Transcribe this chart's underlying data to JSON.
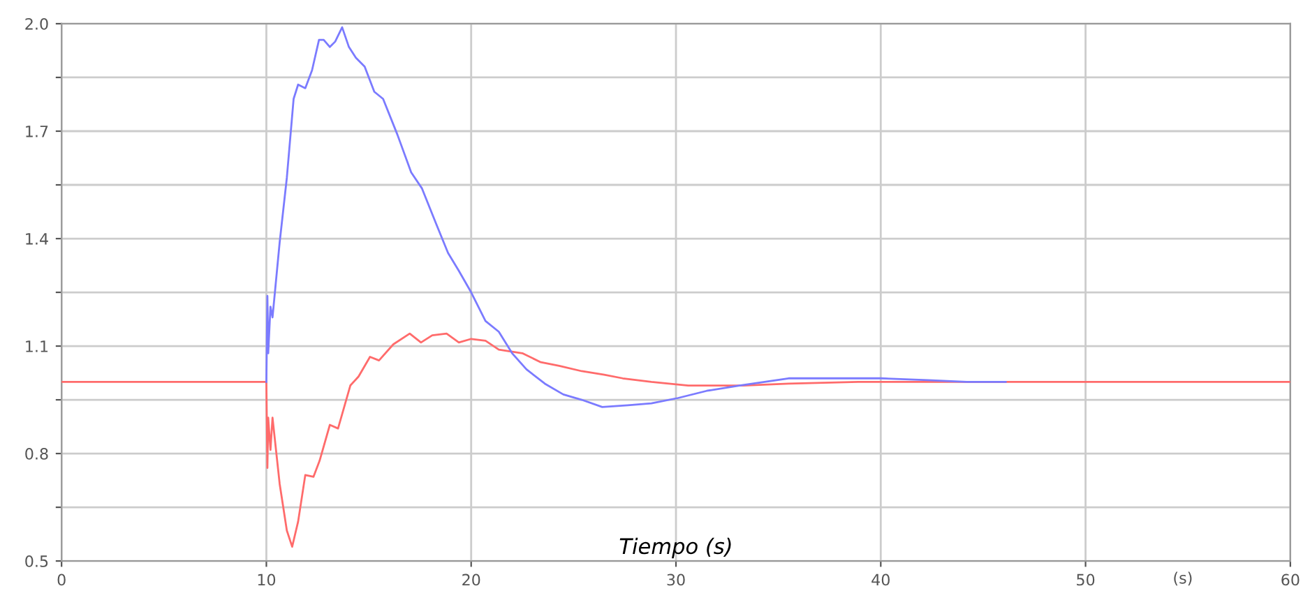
{
  "chart_data": {
    "type": "line",
    "xlabel": "Tiempo (s)",
    "annotations": [
      "(s)"
    ],
    "xlim": [
      0,
      60
    ],
    "xticks": [
      0,
      10,
      20,
      30,
      40,
      50,
      60
    ],
    "ylim": [
      0.5,
      2.0
    ],
    "yticks": [
      0.5,
      {
        "value": 0.65,
        "label": null
      },
      0.8,
      {
        "value": 0.95,
        "label": null
      },
      1.1,
      {
        "value": 1.25,
        "label": null
      },
      1.4,
      {
        "value": 1.55,
        "label": null
      },
      1.7,
      {
        "value": 1.85,
        "label": null
      },
      {
        "value": 2.0,
        "label": "2.0"
      }
    ],
    "grid": true,
    "marker": "none",
    "line_style": "solid",
    "series": [
      {
        "color": "#7b7bff",
        "x": [
          10.0,
          10.05,
          10.09,
          10.2,
          10.3,
          10.65,
          11.0,
          11.33,
          11.55,
          11.9,
          12.23,
          12.57,
          12.8,
          13.1,
          13.36,
          13.7,
          14.03,
          14.37,
          14.8,
          15.27,
          15.7,
          16.4,
          17.07,
          17.6,
          18.3,
          18.87,
          19.4,
          20.0,
          20.7,
          21.35,
          22.0,
          22.7,
          23.6,
          24.5,
          25.4,
          26.4,
          27.65,
          28.8,
          30.1,
          31.5,
          33.1,
          35.5,
          37.8,
          40.0,
          42.3,
          44.2,
          46.1
        ],
        "values": [
          1.0,
          1.24,
          1.08,
          1.21,
          1.18,
          1.39,
          1.57,
          1.79,
          1.83,
          1.82,
          1.87,
          1.955,
          1.955,
          1.935,
          1.95,
          1.99,
          1.935,
          1.905,
          1.88,
          1.81,
          1.79,
          1.69,
          1.585,
          1.54,
          1.44,
          1.36,
          1.31,
          1.25,
          1.17,
          1.14,
          1.08,
          1.035,
          0.995,
          0.965,
          0.95,
          0.93,
          0.935,
          0.94,
          0.955,
          0.975,
          0.99,
          1.01,
          1.01,
          1.01,
          1.005,
          1.0,
          1.0
        ]
      },
      {
        "color": "#ff6b6b",
        "x": [
          0,
          10.0,
          10.05,
          10.09,
          10.2,
          10.3,
          10.65,
          11.0,
          11.26,
          11.55,
          11.9,
          12.3,
          12.6,
          13.1,
          13.5,
          14.1,
          14.5,
          15.06,
          15.5,
          16.2,
          17.0,
          17.55,
          18.1,
          18.8,
          19.4,
          20.0,
          20.7,
          21.35,
          22.5,
          23.4,
          24.3,
          25.4,
          26.5,
          27.4,
          28.8,
          30.6,
          33.3,
          35.5,
          38.9,
          60
        ],
        "values": [
          1.0,
          1.0,
          0.76,
          0.9,
          0.81,
          0.9,
          0.715,
          0.585,
          0.54,
          0.61,
          0.74,
          0.735,
          0.78,
          0.88,
          0.87,
          0.99,
          1.015,
          1.07,
          1.06,
          1.105,
          1.135,
          1.11,
          1.13,
          1.135,
          1.11,
          1.12,
          1.115,
          1.09,
          1.08,
          1.055,
          1.045,
          1.03,
          1.02,
          1.01,
          1.0,
          0.99,
          0.99,
          0.995,
          1.0,
          1.0
        ]
      }
    ]
  }
}
